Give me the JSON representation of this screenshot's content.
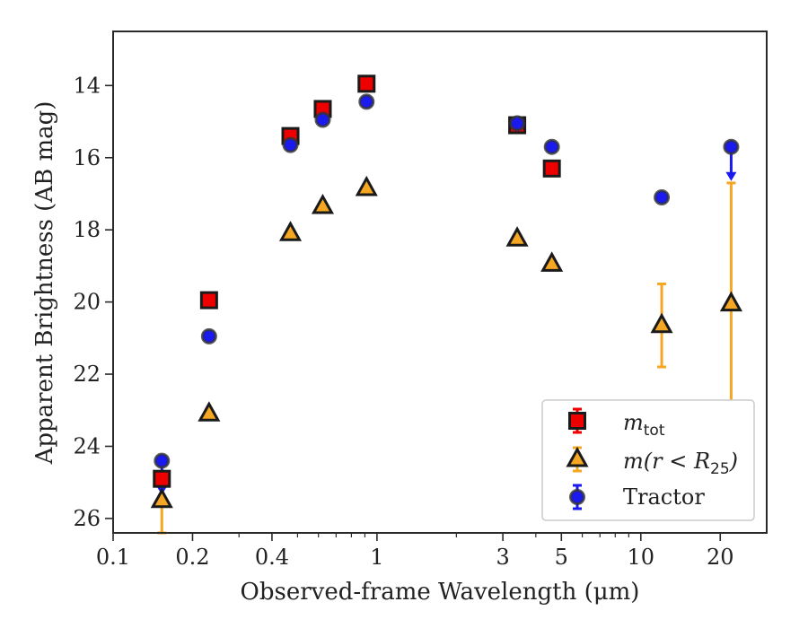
{
  "chart_data": {
    "type": "scatter",
    "xlabel": "Observed-frame Wavelength (μm)",
    "ylabel": "Apparent Brightness (AB mag)",
    "xscale": "log",
    "xlim": [
      0.1,
      30
    ],
    "ylim": [
      26.4,
      12.5
    ],
    "y_inverted": true,
    "x_ticks": [
      0.1,
      0.2,
      0.4,
      1,
      3,
      5,
      10,
      20
    ],
    "x_tick_labels": [
      "0.1",
      "0.2",
      "0.4",
      "1",
      "3",
      "5",
      "10",
      "20"
    ],
    "y_ticks": [
      14,
      16,
      18,
      20,
      22,
      24,
      26
    ],
    "y_tick_labels": [
      "14",
      "16",
      "18",
      "20",
      "22",
      "24",
      "26"
    ],
    "grid": false,
    "legend_position": "lower-right",
    "legend": [
      {
        "series": "mtot",
        "label_main": "m",
        "label_sub": "tot"
      },
      {
        "series": "mr25",
        "label_main": "m(r < R",
        "label_sub": "25",
        "label_tail": ")"
      },
      {
        "series": "tractor",
        "label_main": "Tractor"
      }
    ],
    "series": [
      {
        "key": "mtot",
        "marker": "square",
        "color": "#ee0000",
        "points": [
          {
            "x": 0.153,
            "y": 24.9
          },
          {
            "x": 0.231,
            "y": 19.95
          },
          {
            "x": 0.47,
            "y": 15.4
          },
          {
            "x": 0.623,
            "y": 14.65
          },
          {
            "x": 0.913,
            "y": 13.95
          },
          {
            "x": 3.4,
            "y": 15.1
          },
          {
            "x": 4.6,
            "y": 16.3
          }
        ]
      },
      {
        "key": "mr25",
        "marker": "triangle",
        "color": "#f5a623",
        "points": [
          {
            "x": 0.153,
            "y": 25.5,
            "err_lo": 0.9,
            "err_hi": 0
          },
          {
            "x": 0.231,
            "y": 23.1
          },
          {
            "x": 0.47,
            "y": 18.1
          },
          {
            "x": 0.623,
            "y": 17.35
          },
          {
            "x": 0.913,
            "y": 16.85
          },
          {
            "x": 3.4,
            "y": 18.25
          },
          {
            "x": 4.6,
            "y": 18.95
          },
          {
            "x": 12.0,
            "y": 20.65,
            "err_lo": 1.15,
            "err_hi": 1.15
          },
          {
            "x": 22.0,
            "y": 20.05,
            "err_lo": 3.4,
            "err_hi": 3.35
          }
        ]
      },
      {
        "key": "tractor",
        "marker": "circle",
        "color": "#1a1aee",
        "points": [
          {
            "x": 0.153,
            "y": 24.4,
            "upper_limit": true
          },
          {
            "x": 0.231,
            "y": 20.95
          },
          {
            "x": 0.47,
            "y": 15.65
          },
          {
            "x": 0.623,
            "y": 14.95
          },
          {
            "x": 0.913,
            "y": 14.45
          },
          {
            "x": 3.4,
            "y": 15.05
          },
          {
            "x": 4.6,
            "y": 15.7
          },
          {
            "x": 12.0,
            "y": 17.1
          },
          {
            "x": 22.0,
            "y": 15.7,
            "upper_limit": true
          }
        ]
      }
    ]
  }
}
